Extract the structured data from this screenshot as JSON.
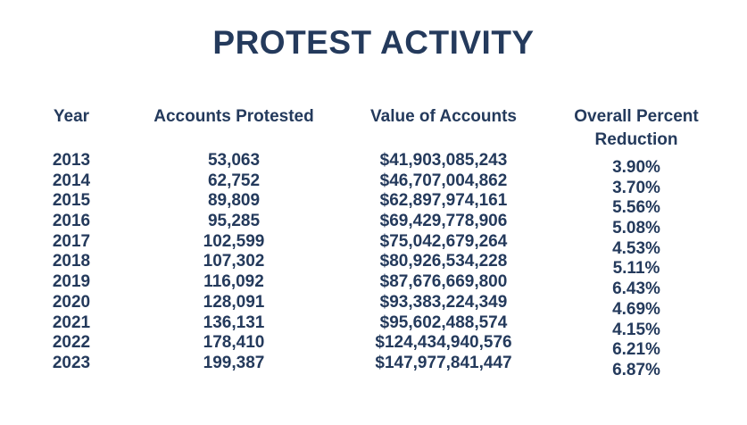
{
  "title": "PROTEST ACTIVITY",
  "colors": {
    "text": "#243a5c",
    "background": "#ffffff"
  },
  "chart_data": {
    "type": "table",
    "title": "PROTEST ACTIVITY",
    "columns": [
      "Year",
      "Accounts Protested",
      "Value of Accounts",
      "Overall Percent Reduction"
    ],
    "rows": [
      [
        "2013",
        "53,063",
        "$41,903,085,243",
        "3.90%"
      ],
      [
        "2014",
        "62,752",
        "$46,707,004,862",
        "3.70%"
      ],
      [
        "2015",
        "89,809",
        "$62,897,974,161",
        "5.56%"
      ],
      [
        "2016",
        "95,285",
        "$69,429,778,906",
        "5.08%"
      ],
      [
        "2017",
        "102,599",
        "$75,042,679,264",
        "4.53%"
      ],
      [
        "2018",
        "107,302",
        "$80,926,534,228",
        "5.11%"
      ],
      [
        "2019",
        "116,092",
        "$87,676,669,800",
        "6.43%"
      ],
      [
        "2020",
        "128,091",
        "$93,383,224,349",
        "4.69%"
      ],
      [
        "2021",
        "136,131",
        "$95,602,488,574",
        "4.15%"
      ],
      [
        "2022",
        "178,410",
        "$124,434,940,576",
        "6.21%"
      ],
      [
        "2023",
        "199,387",
        "$147,977,841,447",
        "6.87%"
      ]
    ]
  }
}
